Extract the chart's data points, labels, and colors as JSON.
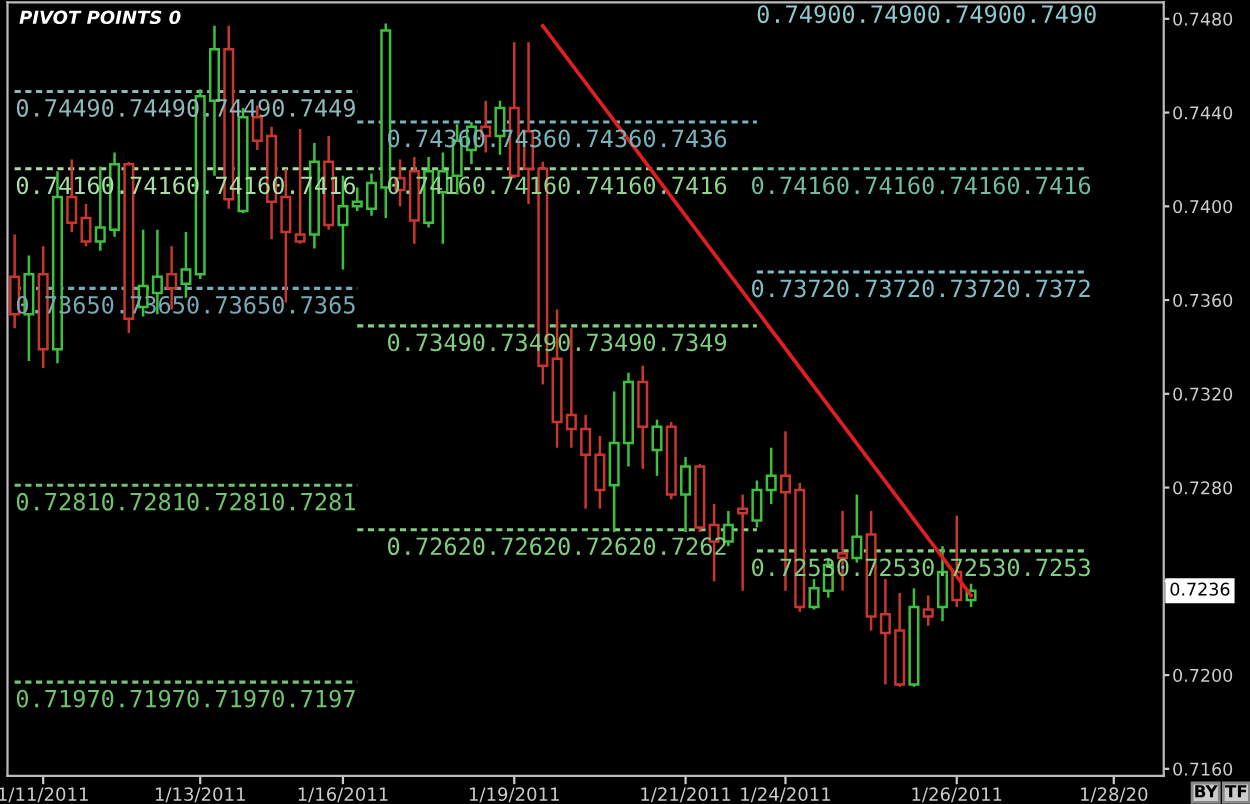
{
  "chart_data": {
    "type": "candlestick",
    "title": "PIVOT POINTS 0",
    "categories": [
      null,
      null,
      "1/11/2011",
      null,
      null,
      null,
      null,
      null,
      null,
      null,
      null,
      null,
      null,
      "1/13/2011",
      null,
      null,
      null,
      null,
      null,
      null,
      null,
      null,
      null,
      "1/16/2011",
      null,
      null,
      null,
      null,
      null,
      null,
      null,
      null,
      null,
      null,
      null,
      "1/19/2011",
      null,
      null,
      null,
      null,
      null,
      null,
      null,
      null,
      null,
      null,
      null,
      "1/21/2011",
      null,
      null,
      null,
      null,
      null,
      null,
      "1/24/2011",
      null,
      null,
      null,
      null,
      null,
      null,
      null,
      null,
      null,
      null,
      null,
      "1/26/2011",
      null,
      null,
      null,
      null,
      null,
      null,
      null,
      null,
      null,
      null,
      "1/28/20",
      null,
      null,
      null
    ],
    "ohlc": [
      [
        0.737,
        0.7388,
        0.7348,
        0.7354
      ],
      [
        0.7354,
        0.7379,
        0.7334,
        0.7371
      ],
      [
        0.7371,
        0.7383,
        0.7331,
        0.7339
      ],
      [
        0.7339,
        0.7415,
        0.7333,
        0.7404
      ],
      [
        0.7404,
        0.742,
        0.7389,
        0.7393
      ],
      [
        0.7395,
        0.7401,
        0.7383,
        0.7385
      ],
      [
        0.7385,
        0.7417,
        0.7381,
        0.7391
      ],
      [
        0.739,
        0.7423,
        0.7387,
        0.7418
      ],
      [
        0.7418,
        0.7419,
        0.7346,
        0.7352
      ],
      [
        0.7357,
        0.739,
        0.7353,
        0.7366
      ],
      [
        0.7363,
        0.739,
        0.7354,
        0.737
      ],
      [
        0.7371,
        0.7383,
        0.7356,
        0.7365
      ],
      [
        0.7367,
        0.7389,
        0.7361,
        0.7373
      ],
      [
        0.7371,
        0.745,
        0.7369,
        0.7447
      ],
      [
        0.7445,
        0.7477,
        0.7413,
        0.7467
      ],
      [
        0.7467,
        0.7477,
        0.7399,
        0.7403
      ],
      [
        0.7398,
        0.7442,
        0.7397,
        0.7438
      ],
      [
        0.7438,
        0.7443,
        0.7424,
        0.7428
      ],
      [
        0.743,
        0.7434,
        0.7386,
        0.7402
      ],
      [
        0.7404,
        0.7416,
        0.7359,
        0.7389
      ],
      [
        0.7388,
        0.7433,
        0.7384,
        0.7385
      ],
      [
        0.7388,
        0.7427,
        0.7382,
        0.7419
      ],
      [
        0.7419,
        0.743,
        0.739,
        0.7392
      ],
      [
        0.7392,
        0.7413,
        0.7373,
        0.74
      ],
      [
        0.74,
        0.7408,
        0.7398,
        0.7402
      ],
      [
        0.7399,
        0.7414,
        0.7396,
        0.741
      ],
      [
        0.7408,
        0.7478,
        0.7395,
        0.7475
      ],
      [
        0.7412,
        0.742,
        0.74,
        0.7407
      ],
      [
        0.7415,
        0.7421,
        0.7384,
        0.7394
      ],
      [
        0.7393,
        0.7421,
        0.7391,
        0.7415
      ],
      [
        0.7406,
        0.7423,
        0.7384,
        0.7415
      ],
      [
        0.7413,
        0.7435,
        0.7405,
        0.7428
      ],
      [
        0.7424,
        0.7436,
        0.7418,
        0.7434
      ],
      [
        0.7434,
        0.7445,
        0.7423,
        0.743
      ],
      [
        0.743,
        0.7445,
        0.7422,
        0.7442
      ],
      [
        0.7442,
        0.747,
        0.7412,
        0.7413
      ],
      [
        0.7432,
        0.747,
        0.7401,
        0.7416
      ],
      [
        0.7416,
        0.7419,
        0.7324,
        0.7332
      ],
      [
        0.7335,
        0.7356,
        0.7297,
        0.7308
      ],
      [
        0.7311,
        0.7348,
        0.7297,
        0.7305
      ],
      [
        0.7305,
        0.7311,
        0.7271,
        0.7294
      ],
      [
        0.7294,
        0.7302,
        0.7271,
        0.7279
      ],
      [
        0.7281,
        0.7321,
        0.7261,
        0.7299
      ],
      [
        0.7299,
        0.7329,
        0.7289,
        0.7325
      ],
      [
        0.7325,
        0.7332,
        0.7288,
        0.7306
      ],
      [
        0.7296,
        0.7309,
        0.7285,
        0.7306
      ],
      [
        0.7306,
        0.7308,
        0.7275,
        0.7277
      ],
      [
        0.7277,
        0.7293,
        0.7261,
        0.7289
      ],
      [
        0.7289,
        0.729,
        0.7261,
        0.7263
      ],
      [
        0.7264,
        0.7273,
        0.724,
        0.7257
      ],
      [
        0.7257,
        0.727,
        0.7255,
        0.7264
      ],
      [
        0.7271,
        0.7277,
        0.7236,
        0.7269
      ],
      [
        0.7266,
        0.7283,
        0.7263,
        0.7279
      ],
      [
        0.7279,
        0.7297,
        0.7273,
        0.7285
      ],
      [
        0.7285,
        0.7304,
        0.7236,
        0.7278
      ],
      [
        0.7279,
        0.7282,
        0.7227,
        0.7229
      ],
      [
        0.7229,
        0.7241,
        0.7228,
        0.7237
      ],
      [
        0.7236,
        0.725,
        0.7233,
        0.7247
      ],
      [
        0.7252,
        0.727,
        0.7236,
        0.725
      ],
      [
        0.725,
        0.7277,
        0.7248,
        0.7259
      ],
      [
        0.726,
        0.727,
        0.7219,
        0.7225
      ],
      [
        0.7226,
        0.7241,
        0.7196,
        0.7218
      ],
      [
        0.7219,
        0.7235,
        0.7195,
        0.7196
      ],
      [
        0.7196,
        0.7237,
        0.7195,
        0.7229
      ],
      [
        0.7228,
        0.7234,
        0.7221,
        0.7225
      ],
      [
        0.7229,
        0.7255,
        0.7223,
        0.7244
      ],
      [
        0.7244,
        0.7268,
        0.7229,
        0.7232
      ],
      [
        0.7232,
        0.7239,
        0.7229,
        0.7236
      ],
      null,
      null,
      null,
      null,
      null,
      null,
      null,
      null,
      null,
      null,
      null,
      null,
      null
    ],
    "colors": [
      "#c8372d",
      "#3fbf3f",
      "#c8372d",
      "#3fbf3f",
      "#c8372d",
      "#c8372d",
      "#3fbf3f",
      "#3fbf3f",
      "#c8372d",
      "#3fbf3f",
      "#3fbf3f",
      "#c8372d",
      "#3fbf3f",
      "#3fbf3f",
      "#3fbf3f",
      "#c8372d",
      "#3fbf3f",
      "#c8372d",
      "#c8372d",
      "#c8372d",
      "#c8372d",
      "#3fbf3f",
      "#c8372d",
      "#3fbf3f",
      "#3fbf3f",
      "#3fbf3f",
      "#3fbf3f",
      "#c8372d",
      "#c8372d",
      "#3fbf3f",
      "#3fbf3f",
      "#3fbf3f",
      "#3fbf3f",
      "#c8372d",
      "#3fbf3f",
      "#c8372d",
      "#c8372d",
      "#c8372d",
      "#c8372d",
      "#c8372d",
      "#c8372d",
      "#c8372d",
      "#3fbf3f",
      "#3fbf3f",
      "#c8372d",
      "#3fbf3f",
      "#c8372d",
      "#3fbf3f",
      "#c8372d",
      "#c8372d",
      "#3fbf3f",
      "#c8372d",
      "#3fbf3f",
      "#3fbf3f",
      "#c8372d",
      "#c8372d",
      "#3fbf3f",
      "#3fbf3f",
      "#c8372d",
      "#3fbf3f",
      "#c8372d",
      "#c8372d",
      "#c8372d",
      "#3fbf3f",
      "#c8372d",
      "#3fbf3f",
      "#c8372d",
      "#3fbf3f",
      null,
      null,
      null,
      null,
      null,
      null,
      null,
      null,
      null,
      null,
      null,
      null,
      null
    ],
    "series": [
      {
        "type": "line",
        "name": "0.74490.74490.74490.7449",
        "color": "#8fb8b8",
        "line_style": "dashed",
        "values": [
          0.7449,
          null,
          null,
          null,
          null,
          null,
          null,
          null,
          null,
          null,
          null,
          null,
          null,
          null,
          null,
          null,
          null,
          null,
          null,
          null,
          null,
          null,
          null,
          null,
          0.7449,
          null,
          null,
          null,
          null,
          null,
          null,
          null,
          null,
          null,
          null,
          null,
          null,
          null,
          null,
          null,
          null,
          null,
          null,
          null,
          null,
          null,
          null,
          null,
          null,
          null,
          null,
          null,
          null,
          null,
          null,
          null,
          null,
          null,
          null,
          null,
          null,
          null,
          null,
          null,
          null,
          null,
          null,
          null,
          null,
          null,
          null,
          null,
          null,
          null,
          null,
          null,
          null,
          null,
          null,
          null,
          null
        ]
      },
      {
        "type": "line",
        "name": "0.74160.74160.74160.7416",
        "color": "#a8e0a8",
        "line_style": "dashed",
        "values": [
          0.7416,
          null,
          null,
          null,
          null,
          null,
          null,
          null,
          null,
          null,
          null,
          null,
          null,
          null,
          null,
          null,
          null,
          null,
          null,
          null,
          null,
          null,
          null,
          null,
          0.7416,
          null,
          null,
          null,
          null,
          null,
          null,
          null,
          null,
          null,
          null,
          null,
          null,
          null,
          null,
          null,
          null,
          null,
          null,
          null,
          null,
          null,
          null,
          null,
          null,
          null,
          null,
          null,
          null,
          null,
          null,
          null,
          null,
          null,
          null,
          null,
          null,
          null,
          null,
          null,
          null,
          null,
          null,
          null,
          null,
          null,
          null,
          null,
          null,
          null,
          null,
          null,
          null,
          null,
          null,
          null,
          null
        ]
      },
      {
        "type": "line",
        "name": "0.73650.73650.73650.7365",
        "color": "#78aab4",
        "line_style": "dashed",
        "values": [
          0.7365,
          null,
          null,
          null,
          null,
          null,
          null,
          null,
          null,
          null,
          null,
          null,
          null,
          null,
          null,
          null,
          null,
          null,
          null,
          null,
          null,
          null,
          null,
          null,
          0.7365,
          null,
          null,
          null,
          null,
          null,
          null,
          null,
          null,
          null,
          null,
          null,
          null,
          null,
          null,
          null,
          null,
          null,
          null,
          null,
          null,
          null,
          null,
          null,
          null,
          null,
          null,
          null,
          null,
          null,
          null,
          null,
          null,
          null,
          null,
          null,
          null,
          null,
          null,
          null,
          null,
          null,
          null,
          null,
          null,
          null,
          null,
          null,
          null,
          null,
          null,
          null,
          null,
          null,
          null,
          null,
          null
        ]
      },
      {
        "type": "line",
        "name": "0.72810.72810.72810.7281",
        "color": "#6fc46f",
        "line_style": "dashed",
        "values": [
          0.7281,
          null,
          null,
          null,
          null,
          null,
          null,
          null,
          null,
          null,
          null,
          null,
          null,
          null,
          null,
          null,
          null,
          null,
          null,
          null,
          null,
          null,
          null,
          null,
          0.7281,
          null,
          null,
          null,
          null,
          null,
          null,
          null,
          null,
          null,
          null,
          null,
          null,
          null,
          null,
          null,
          null,
          null,
          null,
          null,
          null,
          null,
          null,
          null,
          null,
          null,
          null,
          null,
          null,
          null,
          null,
          null,
          null,
          null,
          null,
          null,
          null,
          null,
          null,
          null,
          null,
          null,
          null,
          null,
          null,
          null,
          null,
          null,
          null,
          null,
          null,
          null,
          null,
          null,
          null,
          null,
          null
        ]
      },
      {
        "type": "line",
        "name": "0.71970.71970.71970.7197",
        "color": "#6fc46f",
        "line_style": "dashed",
        "values": [
          0.7197,
          null,
          null,
          null,
          null,
          null,
          null,
          null,
          null,
          null,
          null,
          null,
          null,
          null,
          null,
          null,
          null,
          null,
          null,
          null,
          null,
          null,
          null,
          null,
          0.7197,
          null,
          null,
          null,
          null,
          null,
          null,
          null,
          null,
          null,
          null,
          null,
          null,
          null,
          null,
          null,
          null,
          null,
          null,
          null,
          null,
          null,
          null,
          null,
          null,
          null,
          null,
          null,
          null,
          null,
          null,
          null,
          null,
          null,
          null,
          null,
          null,
          null,
          null,
          null,
          null,
          null,
          null,
          null,
          null,
          null,
          null,
          null,
          null,
          null,
          null,
          null,
          null,
          null,
          null,
          null,
          null
        ]
      },
      {
        "type": "line",
        "name": "0.74360.74360.74360.7436",
        "color": "#78b4bc",
        "line_style": "dashed",
        "values": [
          null,
          null,
          null,
          null,
          null,
          null,
          null,
          null,
          null,
          null,
          null,
          null,
          null,
          null,
          null,
          null,
          null,
          null,
          null,
          null,
          null,
          null,
          null,
          null,
          0.7436,
          null,
          null,
          null,
          null,
          null,
          null,
          null,
          null,
          null,
          null,
          null,
          null,
          null,
          null,
          null,
          null,
          null,
          null,
          null,
          null,
          null,
          null,
          null,
          null,
          null,
          null,
          null,
          0.7436,
          null,
          null,
          null,
          null,
          null,
          null,
          null,
          null,
          null,
          null,
          null,
          null,
          null,
          null,
          null,
          null,
          null,
          null,
          null,
          null,
          null,
          null,
          null,
          null,
          null,
          null,
          null,
          null
        ]
      },
      {
        "type": "line",
        "name": "0.74160.74160.74160.7416",
        "color": "#90d490",
        "line_style": "dashed",
        "values": [
          null,
          null,
          null,
          null,
          null,
          null,
          null,
          null,
          null,
          null,
          null,
          null,
          null,
          null,
          null,
          null,
          null,
          null,
          null,
          null,
          null,
          null,
          null,
          null,
          0.7416,
          null,
          null,
          null,
          null,
          null,
          null,
          null,
          null,
          null,
          null,
          null,
          null,
          null,
          null,
          null,
          null,
          null,
          null,
          null,
          null,
          null,
          null,
          null,
          null,
          null,
          null,
          null,
          0.7416,
          null,
          null,
          null,
          null,
          null,
          null,
          null,
          null,
          null,
          null,
          null,
          null,
          null,
          null,
          null,
          null,
          null,
          null,
          null,
          null,
          null,
          null,
          null,
          null,
          null,
          null,
          null,
          null
        ]
      },
      {
        "type": "line",
        "name": "0.73490.73490.73490.7349",
        "color": "#80cf80",
        "line_style": "dashed",
        "values": [
          null,
          null,
          null,
          null,
          null,
          null,
          null,
          null,
          null,
          null,
          null,
          null,
          null,
          null,
          null,
          null,
          null,
          null,
          null,
          null,
          null,
          null,
          null,
          null,
          0.7349,
          null,
          null,
          null,
          null,
          null,
          null,
          null,
          null,
          null,
          null,
          null,
          null,
          null,
          null,
          null,
          null,
          null,
          null,
          null,
          null,
          null,
          null,
          null,
          null,
          null,
          null,
          null,
          0.7349,
          null,
          null,
          null,
          null,
          null,
          null,
          null,
          null,
          null,
          null,
          null,
          null,
          null,
          null,
          null,
          null,
          null,
          null,
          null,
          null,
          null,
          null,
          null,
          null,
          null,
          null,
          null,
          null
        ]
      },
      {
        "type": "line",
        "name": "0.72620.72620.72620.7262",
        "color": "#80cf80",
        "line_style": "dashed",
        "values": [
          null,
          null,
          null,
          null,
          null,
          null,
          null,
          null,
          null,
          null,
          null,
          null,
          null,
          null,
          null,
          null,
          null,
          null,
          null,
          null,
          null,
          null,
          null,
          null,
          0.7262,
          null,
          null,
          null,
          null,
          null,
          null,
          null,
          null,
          null,
          null,
          null,
          null,
          null,
          null,
          null,
          null,
          null,
          null,
          null,
          null,
          null,
          null,
          null,
          null,
          null,
          null,
          null,
          0.7262,
          null,
          null,
          null,
          null,
          null,
          null,
          null,
          null,
          null,
          null,
          null,
          null,
          null,
          null,
          null,
          null,
          null,
          null,
          null,
          null,
          null,
          null,
          null,
          null,
          null,
          null,
          null,
          null
        ]
      },
      {
        "type": "line",
        "name": "0.74160.74160.74160.7416",
        "color": "#70bca4",
        "line_style": "dashed",
        "values": [
          null,
          null,
          null,
          null,
          null,
          null,
          null,
          null,
          null,
          null,
          null,
          null,
          null,
          null,
          null,
          null,
          null,
          null,
          null,
          null,
          null,
          null,
          null,
          null,
          null,
          null,
          null,
          null,
          null,
          null,
          null,
          null,
          null,
          null,
          null,
          null,
          null,
          null,
          null,
          null,
          null,
          null,
          null,
          null,
          null,
          null,
          null,
          null,
          null,
          null,
          null,
          null,
          0.7416,
          null,
          null,
          null,
          null,
          null,
          null,
          null,
          null,
          null,
          null,
          null,
          null,
          null,
          null,
          null,
          null,
          null,
          null,
          null,
          null,
          null,
          null,
          0.7416,
          null,
          null,
          null,
          null,
          null
        ]
      },
      {
        "type": "line",
        "name": "0.73720.73720.73720.7372",
        "color": "#80bcc4",
        "line_style": "dashed",
        "values": [
          null,
          null,
          null,
          null,
          null,
          null,
          null,
          null,
          null,
          null,
          null,
          null,
          null,
          null,
          null,
          null,
          null,
          null,
          null,
          null,
          null,
          null,
          null,
          null,
          null,
          null,
          null,
          null,
          null,
          null,
          null,
          null,
          null,
          null,
          null,
          null,
          null,
          null,
          null,
          null,
          null,
          null,
          null,
          null,
          null,
          null,
          null,
          null,
          null,
          null,
          null,
          null,
          0.7372,
          null,
          null,
          null,
          null,
          null,
          null,
          null,
          null,
          null,
          null,
          null,
          null,
          null,
          null,
          null,
          null,
          null,
          null,
          null,
          null,
          null,
          null,
          0.7372,
          null,
          null,
          null,
          null,
          null
        ]
      },
      {
        "type": "line",
        "name": "0.72530.72530.72530.7253",
        "color": "#80cf80",
        "line_style": "dashed",
        "values": [
          null,
          null,
          null,
          null,
          null,
          null,
          null,
          null,
          null,
          null,
          null,
          null,
          null,
          null,
          null,
          null,
          null,
          null,
          null,
          null,
          null,
          null,
          null,
          null,
          null,
          null,
          null,
          null,
          null,
          null,
          null,
          null,
          null,
          null,
          null,
          null,
          null,
          null,
          null,
          null,
          null,
          null,
          null,
          null,
          null,
          null,
          null,
          null,
          null,
          null,
          null,
          null,
          0.7253,
          null,
          null,
          null,
          null,
          null,
          null,
          null,
          null,
          null,
          null,
          null,
          null,
          null,
          null,
          null,
          null,
          null,
          null,
          null,
          null,
          null,
          null,
          0.7253,
          null,
          null,
          null,
          null,
          null
        ]
      },
      {
        "type": "line",
        "color": "#e02020",
        "line_style": "solid",
        "values": [
          null,
          null,
          null,
          null,
          null,
          null,
          null,
          null,
          null,
          null,
          null,
          null,
          null,
          null,
          null,
          null,
          null,
          null,
          null,
          null,
          null,
          null,
          null,
          null,
          null,
          null,
          null,
          null,
          null,
          null,
          null,
          null,
          null,
          null,
          null,
          null,
          null,
          0.7477,
          null,
          null,
          null,
          null,
          null,
          null,
          null,
          null,
          null,
          null,
          null,
          null,
          null,
          null,
          null,
          null,
          null,
          null,
          null,
          null,
          null,
          null,
          null,
          null,
          null,
          null,
          null,
          null,
          null,
          0.7234,
          null,
          null,
          null,
          null,
          null,
          null,
          null,
          null,
          null,
          null,
          null,
          null,
          null
        ]
      }
    ],
    "ylim": [
      0.7157,
      0.7487
    ],
    "yticks": [
      {
        "value": 0.716,
        "label": "0.7160"
      },
      {
        "value": 0.72,
        "label": "0.7200"
      },
      {
        "value": 0.724,
        "label": null
      },
      {
        "value": 0.728,
        "label": "0.7280"
      },
      {
        "value": 0.732,
        "label": "0.7320"
      },
      {
        "value": 0.736,
        "label": "0.7360"
      },
      {
        "value": 0.74,
        "label": "0.7400"
      },
      {
        "value": 0.744,
        "label": "0.7440"
      },
      {
        "value": 0.748,
        "label": "0.7480"
      }
    ],
    "annotations": [
      "0.74900.74900.74900.7490",
      {
        "text": "0.7236",
        "y": 0.7236
      },
      "BY",
      "TF"
    ]
  }
}
